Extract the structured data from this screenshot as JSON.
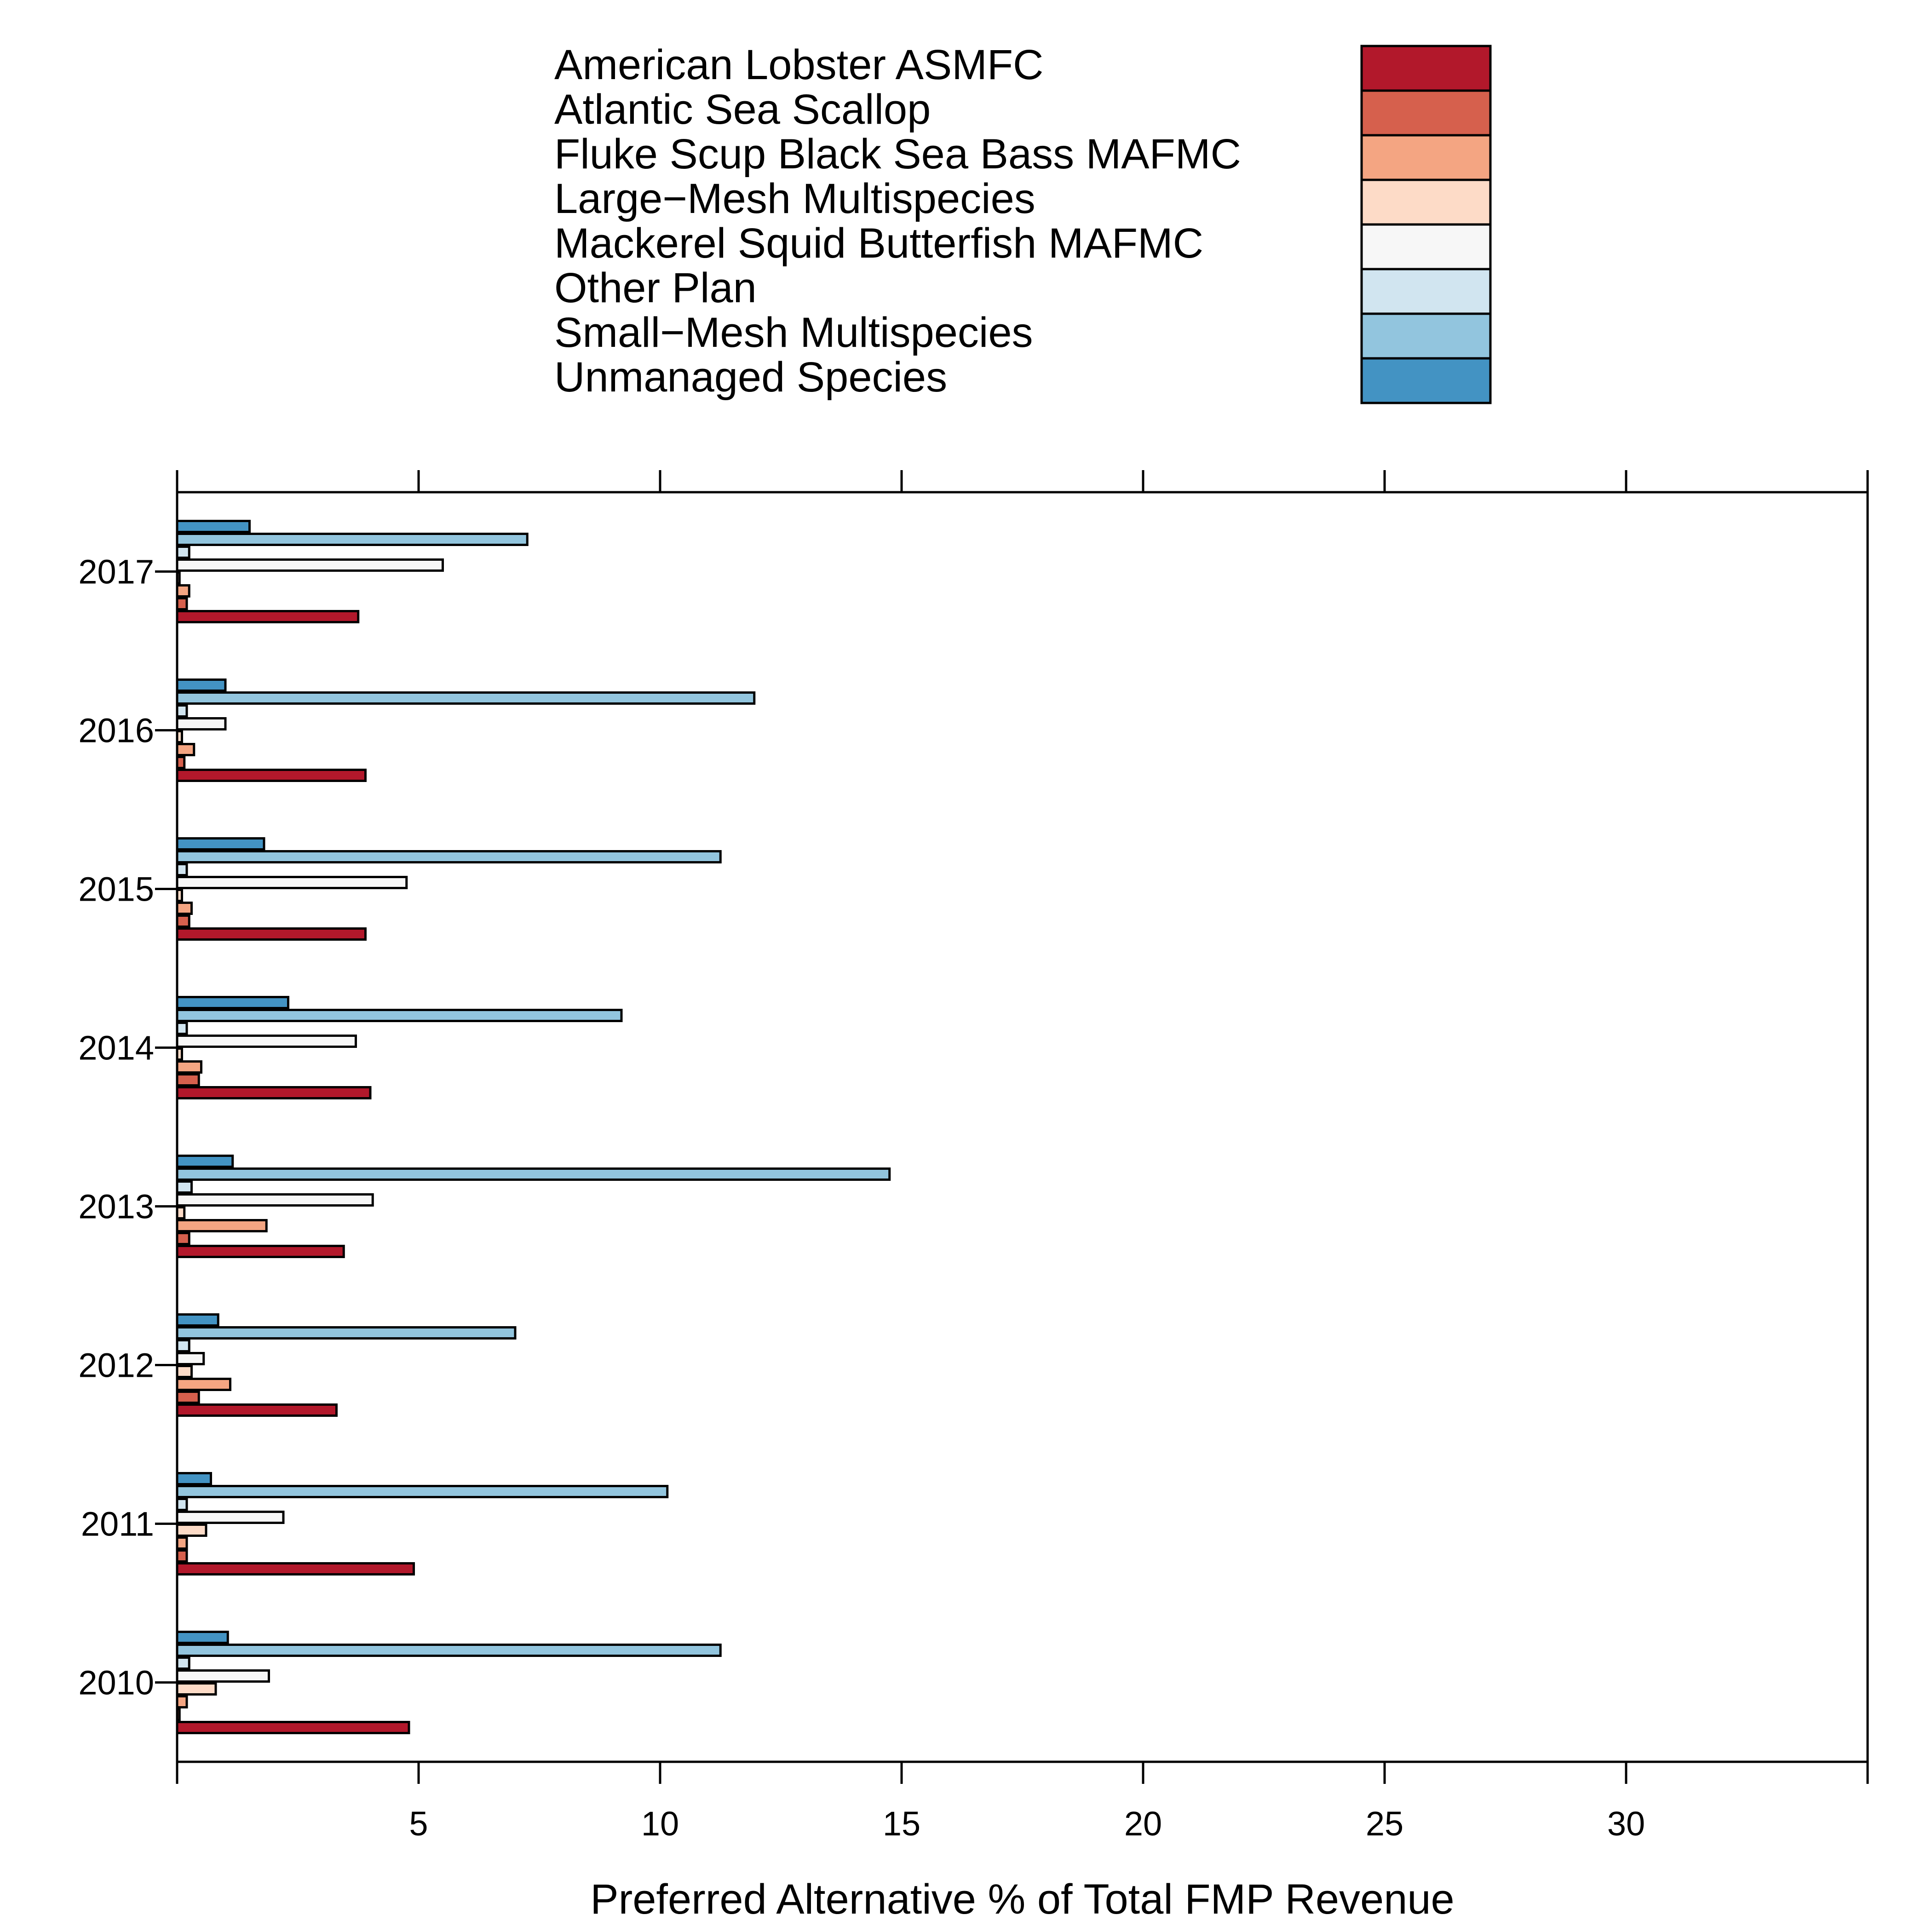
{
  "chart_data": {
    "type": "bar",
    "orientation": "horizontal",
    "grouped": true,
    "title": "",
    "xlabel": "Preferred Alternative % of Total FMP Revenue",
    "ylabel": "",
    "xlim": [
      0,
      35
    ],
    "x_ticks": [
      5,
      10,
      15,
      20,
      25,
      30
    ],
    "grid": false,
    "legend_position": "top",
    "categories": [
      "2010",
      "2011",
      "2012",
      "2013",
      "2014",
      "2015",
      "2016",
      "2017"
    ],
    "series": [
      {
        "name": "American Lobster ASMFC",
        "color": "#b2182b",
        "values": [
          4.8,
          4.9,
          3.3,
          3.45,
          4.0,
          3.9,
          3.9,
          3.75
        ]
      },
      {
        "name": "Atlantic Sea Scallop",
        "color": "#d6604d",
        "values": [
          0.05,
          0.2,
          0.45,
          0.25,
          0.45,
          0.25,
          0.15,
          0.2
        ]
      },
      {
        "name": "Fluke Scup Black Sea Bass MAFMC",
        "color": "#f4a582",
        "values": [
          0.2,
          0.2,
          1.1,
          1.85,
          0.5,
          0.3,
          0.35,
          0.25
        ]
      },
      {
        "name": "Large−Mesh Multispecies",
        "color": "#fddbc7",
        "values": [
          0.8,
          0.6,
          0.3,
          0.15,
          0.1,
          0.1,
          0.1,
          0.05
        ]
      },
      {
        "name": "Mackerel Squid Butterfish MAFMC",
        "color": "#f7f7f7",
        "values": [
          1.9,
          2.2,
          0.55,
          4.05,
          3.7,
          4.75,
          1.0,
          5.5
        ]
      },
      {
        "name": "Other Plan",
        "color": "#d1e5f0",
        "values": [
          0.25,
          0.2,
          0.25,
          0.3,
          0.2,
          0.2,
          0.2,
          0.25
        ]
      },
      {
        "name": "Small−Mesh Multispecies",
        "color": "#92c5de",
        "values": [
          11.25,
          10.15,
          7.0,
          14.75,
          9.2,
          11.25,
          11.95,
          7.25
        ]
      },
      {
        "name": "Unmanaged Species",
        "color": "#4393c3",
        "values": [
          1.05,
          0.7,
          0.85,
          1.15,
          2.3,
          1.8,
          1.0,
          1.5
        ]
      }
    ]
  }
}
